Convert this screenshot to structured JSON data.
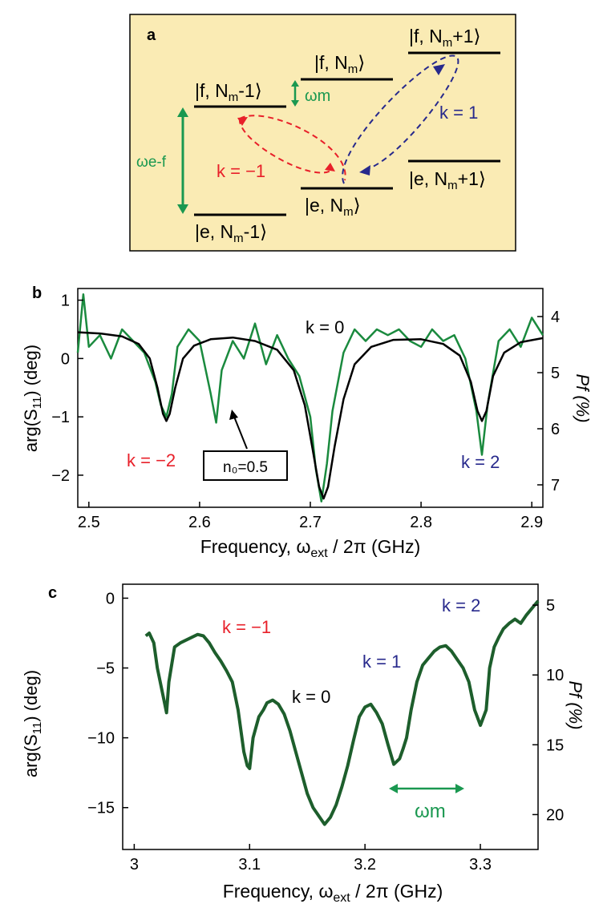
{
  "panel_a": {
    "label": "a",
    "levels": {
      "f_minus": "|f, N",
      "f_center": "|f, N",
      "f_plus": "|f, N",
      "e_minus": "|e, N",
      "e_center": "|e, N",
      "e_plus": "|e, N",
      "sub_m": "m",
      "suffix_minus": "-1",
      "suffix_plus": "+1",
      "ket_close": "⟩"
    },
    "omega_m": "ωm",
    "omega_ef": "ωe-f",
    "k_red": "k = −1",
    "k_blue": "k = 1",
    "colors": {
      "background": "#faebb4",
      "green": "#1a9850",
      "red": "#e8202a",
      "blue": "#27298c",
      "level": "#000000"
    }
  },
  "panel_b": {
    "label": "b",
    "ylabel_left": "arg(S11) (deg)",
    "ylabel_left_main": "arg(S",
    "ylabel_left_sub": "11",
    "ylabel_left_tail": ")  (deg)",
    "ylabel_right": "Pf (%)",
    "xlabel_main": "Frequency, ω",
    "xlabel_sub": "ext",
    "xlabel_tail": " / 2π (GHz)",
    "k_labels": [
      {
        "text": "k = 0",
        "color": "#000000"
      },
      {
        "text": "k = −2",
        "color": "#e8202a"
      },
      {
        "text": "k = 2",
        "color": "#27298c"
      }
    ],
    "annotation": "n₀=0.5",
    "xticks": [
      "2.5",
      "2.6",
      "2.7",
      "2.8",
      "2.9"
    ],
    "yticks_left": [
      "1",
      "0",
      "−1",
      "−2"
    ],
    "yticks_right": [
      "4",
      "5",
      "6",
      "7"
    ]
  },
  "panel_c": {
    "label": "c",
    "ylabel_left_main": "arg(S",
    "ylabel_left_sub": "11",
    "ylabel_left_tail": ")  (deg)",
    "ylabel_right": "Pf (%)",
    "xlabel_main": "Frequency, ω",
    "xlabel_sub": "ext",
    "xlabel_tail": " / 2π (GHz)",
    "k_labels": [
      {
        "text": "k = −1",
        "color": "#e8202a"
      },
      {
        "text": "k = 0",
        "color": "#000000"
      },
      {
        "text": "k = 1",
        "color": "#27298c"
      },
      {
        "text": "k = 2",
        "color": "#27298c"
      }
    ],
    "omega_m": "ωm",
    "xticks": [
      "3",
      "3.1",
      "3.2",
      "3.3"
    ],
    "yticks_left": [
      "0",
      "−5",
      "−10",
      "−15"
    ],
    "yticks_right": [
      "5",
      "10",
      "15",
      "20"
    ]
  },
  "chart_data": [
    {
      "type": "line",
      "xlabel": "Frequency, ωext / 2π (GHz)",
      "ylabel": "arg(S11) (deg)",
      "ylabel_right": "Pf (%)",
      "xlim": [
        2.49,
        2.91
      ],
      "ylim": [
        -2.55,
        1.2
      ],
      "ylim_right": [
        3.5,
        7.4
      ],
      "grid": false,
      "series": [
        {
          "color": "#1a8a3e",
          "x": [
            2.49,
            2.495,
            2.5,
            2.51,
            2.52,
            2.53,
            2.54,
            2.55,
            2.56,
            2.565,
            2.57,
            2.575,
            2.58,
            2.59,
            2.6,
            2.61,
            2.615,
            2.62,
            2.63,
            2.64,
            2.65,
            2.66,
            2.67,
            2.68,
            2.69,
            2.7,
            2.705,
            2.71,
            2.715,
            2.72,
            2.73,
            2.74,
            2.75,
            2.76,
            2.77,
            2.78,
            2.79,
            2.8,
            2.81,
            2.82,
            2.83,
            2.84,
            2.85,
            2.855,
            2.86,
            2.87,
            2.88,
            2.89,
            2.9,
            2.91
          ],
          "y": [
            0.1,
            1.1,
            0.2,
            0.4,
            0.0,
            0.5,
            0.3,
            0.1,
            -0.4,
            -0.8,
            -1.0,
            -0.6,
            0.2,
            0.5,
            0.3,
            -0.6,
            -1.1,
            -0.2,
            0.3,
            0.0,
            0.6,
            -0.1,
            0.4,
            0.0,
            -0.3,
            -1.0,
            -1.9,
            -2.45,
            -1.8,
            -0.9,
            0.1,
            0.5,
            0.3,
            0.5,
            0.4,
            0.5,
            0.3,
            0.2,
            0.5,
            0.3,
            0.4,
            0.0,
            -0.9,
            -1.65,
            -0.8,
            0.3,
            0.5,
            0.2,
            0.7,
            0.4
          ]
        },
        {
          "color": "#000000",
          "x": [
            2.49,
            2.51,
            2.53,
            2.545,
            2.555,
            2.562,
            2.567,
            2.57,
            2.573,
            2.578,
            2.585,
            2.595,
            2.61,
            2.63,
            2.65,
            2.67,
            2.685,
            2.695,
            2.702,
            2.708,
            2.712,
            2.716,
            2.722,
            2.73,
            2.74,
            2.755,
            2.775,
            2.8,
            2.82,
            2.835,
            2.845,
            2.851,
            2.855,
            2.859,
            2.865,
            2.875,
            2.89,
            2.91
          ],
          "y": [
            0.45,
            0.43,
            0.38,
            0.25,
            0.0,
            -0.5,
            -0.95,
            -1.07,
            -0.95,
            -0.5,
            0.0,
            0.22,
            0.33,
            0.36,
            0.3,
            0.15,
            -0.2,
            -0.8,
            -1.55,
            -2.2,
            -2.4,
            -2.2,
            -1.5,
            -0.7,
            -0.1,
            0.2,
            0.32,
            0.33,
            0.25,
            0.05,
            -0.4,
            -0.9,
            -1.07,
            -0.9,
            -0.3,
            0.1,
            0.28,
            0.35
          ]
        }
      ]
    },
    {
      "type": "line",
      "xlabel": "Frequency, ωext / 2π (GHz)",
      "ylabel": "arg(S11) (deg)",
      "ylabel_right": "Pf (%)",
      "xlim": [
        2.99,
        3.35
      ],
      "ylim": [
        -18,
        1
      ],
      "ylim_right": [
        3.5,
        22.5
      ],
      "grid": false,
      "series": [
        {
          "color": "#1d5e2c",
          "x": [
            3.01,
            3.013,
            3.017,
            3.02,
            3.025,
            3.028,
            3.03,
            3.035,
            3.04,
            3.045,
            3.05,
            3.055,
            3.06,
            3.065,
            3.07,
            3.075,
            3.08,
            3.085,
            3.09,
            3.095,
            3.098,
            3.1,
            3.103,
            3.108,
            3.112,
            3.115,
            3.12,
            3.125,
            3.13,
            3.135,
            3.14,
            3.145,
            3.15,
            3.155,
            3.16,
            3.165,
            3.17,
            3.175,
            3.18,
            3.185,
            3.19,
            3.195,
            3.2,
            3.205,
            3.21,
            3.215,
            3.22,
            3.225,
            3.23,
            3.233,
            3.236,
            3.24,
            3.245,
            3.25,
            3.255,
            3.26,
            3.265,
            3.27,
            3.275,
            3.28,
            3.285,
            3.29,
            3.295,
            3.3,
            3.305,
            3.308,
            3.312,
            3.316,
            3.32,
            3.325,
            3.33,
            3.335,
            3.34,
            3.345,
            3.35
          ],
          "y": [
            -2.7,
            -2.5,
            -3.2,
            -5.0,
            -7.0,
            -8.2,
            -6.0,
            -3.5,
            -3.2,
            -3.0,
            -2.8,
            -2.6,
            -2.7,
            -3.2,
            -3.9,
            -4.5,
            -5.2,
            -6.0,
            -8.0,
            -11.0,
            -12.0,
            -12.2,
            -10.0,
            -8.5,
            -8.0,
            -7.5,
            -7.3,
            -7.6,
            -8.3,
            -9.5,
            -11.0,
            -12.5,
            -14.0,
            -15.0,
            -15.6,
            -16.2,
            -15.7,
            -14.8,
            -13.5,
            -12.0,
            -10.2,
            -8.5,
            -7.8,
            -7.6,
            -8.2,
            -9.0,
            -10.5,
            -11.9,
            -11.5,
            -10.8,
            -10.0,
            -8.0,
            -6.0,
            -4.8,
            -4.3,
            -3.8,
            -3.5,
            -3.4,
            -3.8,
            -4.4,
            -5.0,
            -6.0,
            -8.0,
            -9.1,
            -8.0,
            -5.0,
            -3.5,
            -2.8,
            -2.2,
            -1.8,
            -1.5,
            -1.8,
            -1.2,
            -0.7,
            -0.2
          ]
        }
      ]
    }
  ]
}
